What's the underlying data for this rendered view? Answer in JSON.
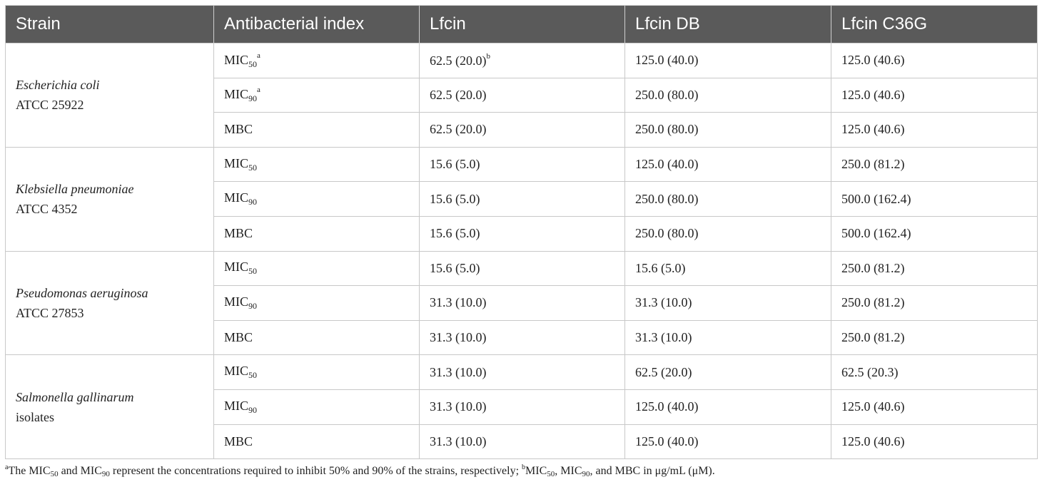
{
  "table": {
    "headers": [
      "Strain",
      "Antibacterial index",
      "Lfcin",
      "Lfcin DB",
      "Lfcin C36G"
    ],
    "groups": [
      {
        "species": "Escherichia coli",
        "strain_id": "ATCC 25922",
        "rows": [
          {
            "index_base": "MIC",
            "index_sub": "50",
            "index_sup": "a",
            "lfcin": "62.5 (20.0)",
            "lfcin_sup": "b",
            "lfcin_db": "125.0 (40.0)",
            "lfcin_c36g": "125.0 (40.6)"
          },
          {
            "index_base": "MIC",
            "index_sub": "90",
            "index_sup": "a",
            "lfcin": "62.5 (20.0)",
            "lfcin_db": "250.0 (80.0)",
            "lfcin_c36g": "125.0 (40.6)"
          },
          {
            "index_base": "MBC",
            "lfcin": "62.5 (20.0)",
            "lfcin_db": "250.0 (80.0)",
            "lfcin_c36g": "125.0 (40.6)"
          }
        ]
      },
      {
        "species": "Klebsiella pneumoniae",
        "strain_id": "ATCC 4352",
        "rows": [
          {
            "index_base": "MIC",
            "index_sub": "50",
            "lfcin": "15.6 (5.0)",
            "lfcin_db": "125.0 (40.0)",
            "lfcin_c36g": "250.0 (81.2)"
          },
          {
            "index_base": "MIC",
            "index_sub": "90",
            "lfcin": "15.6 (5.0)",
            "lfcin_db": "250.0 (80.0)",
            "lfcin_c36g": "500.0 (162.4)"
          },
          {
            "index_base": "MBC",
            "lfcin": "15.6 (5.0)",
            "lfcin_db": "250.0 (80.0)",
            "lfcin_c36g": "500.0 (162.4)"
          }
        ]
      },
      {
        "species": "Pseudomonas aeruginosa",
        "strain_id": "ATCC 27853",
        "rows": [
          {
            "index_base": "MIC",
            "index_sub": "50",
            "lfcin": "15.6 (5.0)",
            "lfcin_db": "15.6 (5.0)",
            "lfcin_c36g": "250.0 (81.2)"
          },
          {
            "index_base": "MIC",
            "index_sub": "90",
            "lfcin": "31.3 (10.0)",
            "lfcin_db": "31.3 (10.0)",
            "lfcin_c36g": "250.0 (81.2)"
          },
          {
            "index_base": "MBC",
            "lfcin": "31.3 (10.0)",
            "lfcin_db": "31.3 (10.0)",
            "lfcin_c36g": "250.0 (81.2)"
          }
        ]
      },
      {
        "species": "Salmonella gallinarum",
        "strain_id": "isolates",
        "rows": [
          {
            "index_base": "MIC",
            "index_sub": "50",
            "lfcin": "31.3 (10.0)",
            "lfcin_db": "62.5 (20.0)",
            "lfcin_c36g": "62.5 (20.3)"
          },
          {
            "index_base": "MIC",
            "index_sub": "90",
            "lfcin": "31.3 (10.0)",
            "lfcin_db": "125.0 (40.0)",
            "lfcin_c36g": "125.0 (40.6)"
          },
          {
            "index_base": "MBC",
            "lfcin": "31.3 (10.0)",
            "lfcin_db": "125.0 (40.0)",
            "lfcin_c36g": "125.0 (40.6)"
          }
        ]
      }
    ]
  },
  "footnote": {
    "a_mark": "a",
    "a_p1": "The MIC",
    "a_sub1": "50",
    "a_p2": " and MIC",
    "a_sub2": "90",
    "a_p3": " represent the concentrations required to inhibit 50% and 90% of the strains, respectively; ",
    "b_mark": "b",
    "b_p1": "MIC",
    "b_sub1": "50",
    "b_p2": ", MIC",
    "b_sub2": "90",
    "b_p3": ", and MBC in μg/mL (μM)."
  }
}
